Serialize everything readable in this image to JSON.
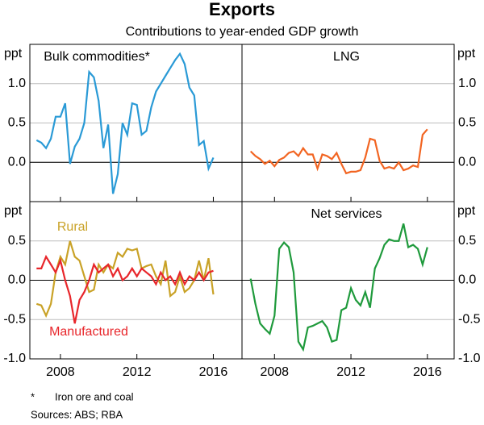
{
  "title": "Exports",
  "subtitle": "Contributions to year-ended GDP growth",
  "chart_data": [
    {
      "type": "line",
      "title": "Bulk commodities*",
      "y_label": "ppt",
      "x": [
        2006.75,
        2007,
        2007.25,
        2007.5,
        2007.75,
        2008,
        2008.25,
        2008.5,
        2008.75,
        2009,
        2009.25,
        2009.5,
        2009.75,
        2010,
        2010.25,
        2010.5,
        2010.75,
        2011,
        2011.25,
        2011.5,
        2011.75,
        2012,
        2012.25,
        2012.5,
        2012.75,
        2013,
        2013.25,
        2013.5,
        2013.75,
        2014,
        2014.25,
        2014.5,
        2014.75,
        2015,
        2015.25,
        2015.5,
        2015.75,
        2016
      ],
      "xlim": [
        2006.4,
        2017.5
      ],
      "xticks": [
        2008,
        2012,
        2016
      ],
      "ylim": [
        -0.5,
        1.5
      ],
      "yticks": [
        {
          "value": 0,
          "label": "0.0"
        },
        0.5,
        {
          "value": 1,
          "label": "1.0"
        }
      ],
      "series": [
        {
          "color": "#2a9ad6",
          "values": [
            0.28,
            0.25,
            0.18,
            0.3,
            0.58,
            0.58,
            0.75,
            -0.02,
            0.2,
            0.3,
            0.5,
            1.15,
            1.08,
            0.78,
            0.18,
            0.48,
            -0.4,
            -0.15,
            0.5,
            0.35,
            0.75,
            0.73,
            0.35,
            0.4,
            0.7,
            0.9,
            1.0,
            1.1,
            1.2,
            1.3,
            1.38,
            1.25,
            0.95,
            0.85,
            0.22,
            0.27,
            -0.08,
            0.06
          ]
        }
      ]
    },
    {
      "type": "line",
      "title": "LNG",
      "y_label": "ppt",
      "x": [
        2006.75,
        2007,
        2007.25,
        2007.5,
        2007.75,
        2008,
        2008.25,
        2008.5,
        2008.75,
        2009,
        2009.25,
        2009.5,
        2009.75,
        2010,
        2010.25,
        2010.5,
        2010.75,
        2011,
        2011.25,
        2011.5,
        2011.75,
        2012,
        2012.25,
        2012.5,
        2012.75,
        2013,
        2013.25,
        2013.5,
        2013.75,
        2014,
        2014.25,
        2014.5,
        2014.75,
        2015,
        2015.25,
        2015.5,
        2015.75,
        2016
      ],
      "xlim": [
        2006.3,
        2017.4
      ],
      "xticks": [
        2008,
        2012,
        2016
      ],
      "ylim": [
        -0.5,
        1.5
      ],
      "yticks": [
        {
          "value": 0,
          "label": "0.0"
        },
        0.5,
        {
          "value": 1,
          "label": "1.0"
        }
      ],
      "series": [
        {
          "color": "#f26522",
          "values": [
            0.14,
            0.08,
            0.04,
            -0.02,
            0.02,
            -0.05,
            0.03,
            0.06,
            0.12,
            0.14,
            0.08,
            0.18,
            0.1,
            0.1,
            -0.08,
            0.1,
            0.08,
            0.04,
            0.12,
            -0.02,
            -0.14,
            -0.12,
            -0.12,
            -0.1,
            0.06,
            0.3,
            0.28,
            0.02,
            -0.08,
            -0.06,
            -0.08,
            0.0,
            -0.1,
            -0.08,
            -0.04,
            -0.06,
            0.35,
            0.42
          ]
        }
      ]
    },
    {
      "type": "line",
      "y_label": "ppt",
      "x": [
        2006.75,
        2007,
        2007.25,
        2007.5,
        2007.75,
        2008,
        2008.25,
        2008.5,
        2008.75,
        2009,
        2009.25,
        2009.5,
        2009.75,
        2010,
        2010.25,
        2010.5,
        2010.75,
        2011,
        2011.25,
        2011.5,
        2011.75,
        2012,
        2012.25,
        2012.5,
        2012.75,
        2013,
        2013.25,
        2013.5,
        2013.75,
        2014,
        2014.25,
        2014.5,
        2014.75,
        2015,
        2015.25,
        2015.5,
        2015.75,
        2016
      ],
      "xlim": [
        2006.4,
        2017.5
      ],
      "xticks": [
        2008,
        2012,
        2016
      ],
      "ylim": [
        -1,
        1
      ],
      "yticks": [
        {
          "value": -1,
          "label": "-1.0"
        },
        -0.5,
        {
          "value": 0,
          "label": "0.0"
        },
        0.5
      ],
      "series": [
        {
          "name": "Rural",
          "color": "#c9a227",
          "values": [
            -0.3,
            -0.32,
            -0.45,
            -0.3,
            0.1,
            0.3,
            0.2,
            0.5,
            0.3,
            0.25,
            0.05,
            -0.15,
            -0.12,
            0.2,
            0.1,
            0.2,
            0.15,
            0.35,
            0.3,
            0.4,
            0.38,
            0.4,
            0.15,
            0.18,
            0.2,
            0.05,
            -0.05,
            0.25,
            -0.2,
            -0.15,
            0.05,
            -0.15,
            -0.1,
            0.0,
            0.25,
            0.0,
            0.28,
            -0.18
          ]
        },
        {
          "name": "Manufactured",
          "color": "#e8262b",
          "values": [
            0.15,
            0.15,
            0.3,
            0.2,
            0.1,
            0.25,
            0.0,
            -0.2,
            -0.55,
            -0.25,
            -0.15,
            0.0,
            0.2,
            0.1,
            0.15,
            0.2,
            0.05,
            0.15,
            0.0,
            0.05,
            0.15,
            0.05,
            0.15,
            0.1,
            0.05,
            -0.05,
            0.1,
            0.0,
            0.05,
            -0.05,
            0.1,
            -0.05,
            0.05,
            0.0,
            0.1,
            0.0,
            0.1,
            0.12
          ]
        }
      ]
    },
    {
      "type": "line",
      "title": "Net services",
      "y_label": "ppt",
      "x": [
        2006.75,
        2007,
        2007.25,
        2007.5,
        2007.75,
        2008,
        2008.25,
        2008.5,
        2008.75,
        2009,
        2009.25,
        2009.5,
        2009.75,
        2010,
        2010.25,
        2010.5,
        2010.75,
        2011,
        2011.25,
        2011.5,
        2011.75,
        2012,
        2012.25,
        2012.5,
        2012.75,
        2013,
        2013.25,
        2013.5,
        2013.75,
        2014,
        2014.25,
        2014.5,
        2014.75,
        2015,
        2015.25,
        2015.5,
        2015.75,
        2016
      ],
      "xlim": [
        2006.3,
        2017.4
      ],
      "xticks": [
        2008,
        2012,
        2016
      ],
      "ylim": [
        -1,
        1
      ],
      "yticks": [
        {
          "value": -1,
          "label": "-1.0"
        },
        -0.5,
        {
          "value": 0,
          "label": "0.0"
        },
        0.5
      ],
      "series": [
        {
          "color": "#1f9a3c",
          "values": [
            0.02,
            -0.3,
            -0.55,
            -0.62,
            -0.68,
            -0.45,
            0.4,
            0.48,
            0.42,
            0.1,
            -0.78,
            -0.88,
            -0.6,
            -0.58,
            -0.55,
            -0.52,
            -0.6,
            -0.78,
            -0.76,
            -0.38,
            -0.35,
            -0.1,
            -0.25,
            -0.32,
            -0.15,
            -0.35,
            0.15,
            0.28,
            0.45,
            0.52,
            0.5,
            0.5,
            0.72,
            0.42,
            0.45,
            0.4,
            0.2,
            0.42
          ]
        }
      ]
    }
  ],
  "footnotes": [
    "*",
    "Iron ore and coal"
  ],
  "sources": "Sources:  ABS; RBA"
}
